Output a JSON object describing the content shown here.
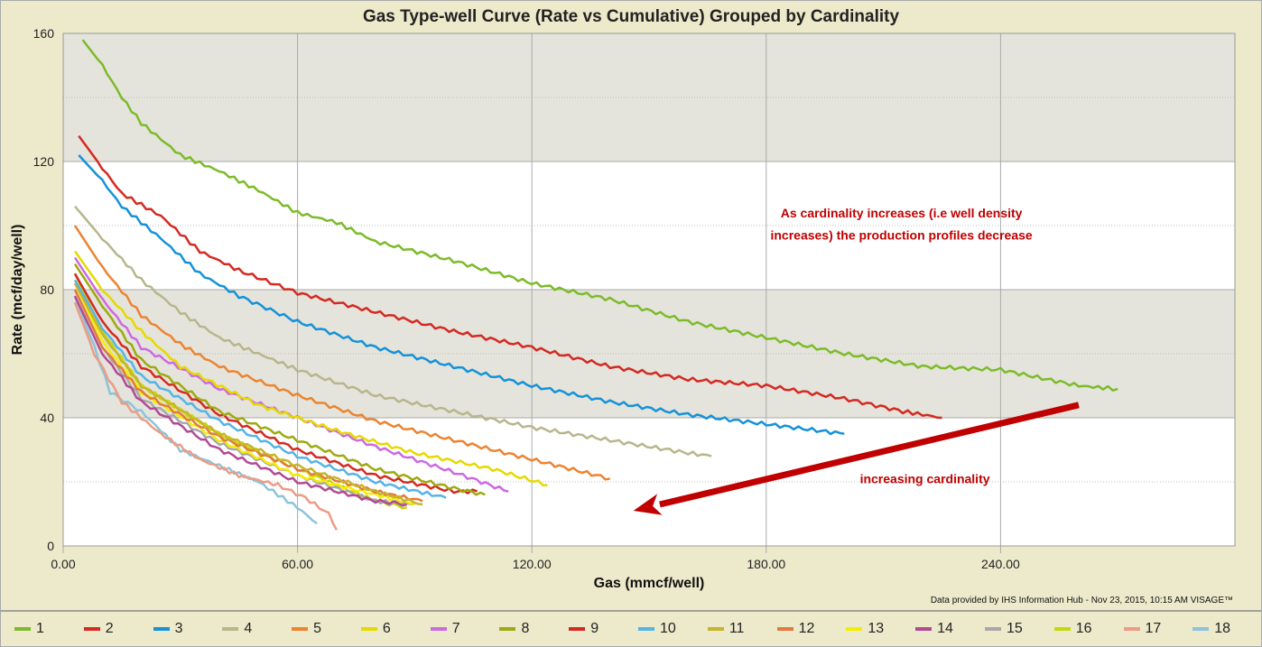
{
  "chart_data": {
    "type": "line",
    "title": "Gas Type-well Curve (Rate vs Cumulative) Grouped by Cardinality",
    "xlabel": "Gas (mmcf/well)",
    "ylabel": "Rate (mcf/day/well)",
    "xlim": [
      0,
      300
    ],
    "ylim": [
      0,
      160
    ],
    "xticks": [
      0,
      60,
      120,
      180,
      240
    ],
    "xtick_labels": [
      "0.00",
      "60.00",
      "120.00",
      "180.00",
      "240.00"
    ],
    "yticks": [
      0,
      40,
      80,
      120,
      160
    ],
    "ytick_labels": [
      "0",
      "40",
      "80",
      "120",
      "160"
    ],
    "grid": true,
    "bands": [
      [
        40,
        80
      ],
      [
        120,
        160
      ]
    ],
    "legend_position": "bottom",
    "annotations": [
      {
        "text": "As cardinality increases (i.e well density",
        "x": 210,
        "y": 104
      },
      {
        "text": "increases) the production profiles decrease",
        "x": 210,
        "y": 97
      },
      {
        "text": "increasing cardinality",
        "x": 216,
        "y": 21
      }
    ],
    "arrow": {
      "from": [
        260,
        44
      ],
      "to": [
        146,
        11
      ],
      "color": "#C00000"
    },
    "credit": "Data provided by IHS Information Hub - Nov 23, 2015, 10:15 AM  VISAGE™",
    "series": [
      {
        "name": "1",
        "color": "#7DBB2A",
        "points": [
          [
            5,
            158
          ],
          [
            10,
            150
          ],
          [
            15,
            140
          ],
          [
            20,
            132
          ],
          [
            30,
            122
          ],
          [
            40,
            117
          ],
          [
            50,
            111
          ],
          [
            60,
            104
          ],
          [
            70,
            101
          ],
          [
            80,
            95
          ],
          [
            100,
            89
          ],
          [
            120,
            82
          ],
          [
            140,
            77
          ],
          [
            160,
            70
          ],
          [
            180,
            65
          ],
          [
            200,
            60
          ],
          [
            220,
            56
          ],
          [
            240,
            55
          ],
          [
            260,
            50
          ],
          [
            270,
            49
          ]
        ]
      },
      {
        "name": "2",
        "color": "#D42A22",
        "points": [
          [
            4,
            128
          ],
          [
            10,
            118
          ],
          [
            15,
            110
          ],
          [
            25,
            103
          ],
          [
            35,
            92
          ],
          [
            45,
            86
          ],
          [
            60,
            79
          ],
          [
            80,
            73
          ],
          [
            100,
            67
          ],
          [
            120,
            62
          ],
          [
            140,
            56
          ],
          [
            160,
            52
          ],
          [
            180,
            50
          ],
          [
            200,
            46
          ],
          [
            215,
            42
          ],
          [
            225,
            40
          ]
        ]
      },
      {
        "name": "3",
        "color": "#1592D8",
        "points": [
          [
            4,
            122
          ],
          [
            10,
            114
          ],
          [
            15,
            106
          ],
          [
            25,
            96
          ],
          [
            35,
            85
          ],
          [
            45,
            78
          ],
          [
            60,
            70
          ],
          [
            80,
            62
          ],
          [
            100,
            56
          ],
          [
            120,
            50
          ],
          [
            140,
            45
          ],
          [
            160,
            41
          ],
          [
            180,
            38
          ],
          [
            200,
            35
          ]
        ]
      },
      {
        "name": "4",
        "color": "#B7B68C",
        "points": [
          [
            3,
            106
          ],
          [
            10,
            96
          ],
          [
            20,
            83
          ],
          [
            30,
            73
          ],
          [
            40,
            65
          ],
          [
            50,
            60
          ],
          [
            60,
            55
          ],
          [
            80,
            47
          ],
          [
            100,
            42
          ],
          [
            120,
            37
          ],
          [
            140,
            33
          ],
          [
            160,
            29
          ],
          [
            166,
            28
          ]
        ]
      },
      {
        "name": "5",
        "color": "#EC8431",
        "points": [
          [
            3,
            100
          ],
          [
            10,
            87
          ],
          [
            20,
            72
          ],
          [
            30,
            63
          ],
          [
            40,
            56
          ],
          [
            60,
            47
          ],
          [
            80,
            39
          ],
          [
            100,
            33
          ],
          [
            120,
            27
          ],
          [
            140,
            21
          ]
        ]
      },
      {
        "name": "6",
        "color": "#E6D900",
        "points": [
          [
            3,
            92
          ],
          [
            10,
            80
          ],
          [
            20,
            67
          ],
          [
            30,
            56
          ],
          [
            50,
            44
          ],
          [
            70,
            36
          ],
          [
            90,
            29
          ],
          [
            110,
            24
          ],
          [
            124,
            19
          ]
        ]
      },
      {
        "name": "7",
        "color": "#CC6AE0",
        "points": [
          [
            3,
            90
          ],
          [
            10,
            77
          ],
          [
            20,
            62
          ],
          [
            40,
            49
          ],
          [
            60,
            40
          ],
          [
            80,
            31
          ],
          [
            100,
            23
          ],
          [
            114,
            17
          ]
        ]
      },
      {
        "name": "8",
        "color": "#9EAA10",
        "points": [
          [
            3,
            88
          ],
          [
            10,
            75
          ],
          [
            20,
            58
          ],
          [
            40,
            42
          ],
          [
            60,
            33
          ],
          [
            80,
            24
          ],
          [
            100,
            18
          ],
          [
            108,
            16
          ]
        ]
      },
      {
        "name": "9",
        "color": "#D42A22",
        "points": [
          [
            3,
            85
          ],
          [
            10,
            70
          ],
          [
            20,
            56
          ],
          [
            40,
            41
          ],
          [
            60,
            30
          ],
          [
            80,
            22
          ],
          [
            100,
            17
          ],
          [
            106,
            17
          ]
        ]
      },
      {
        "name": "10",
        "color": "#55B4E6",
        "points": [
          [
            3,
            83
          ],
          [
            10,
            68
          ],
          [
            20,
            53
          ],
          [
            40,
            39
          ],
          [
            60,
            28
          ],
          [
            80,
            20
          ],
          [
            98,
            15
          ]
        ]
      },
      {
        "name": "11",
        "color": "#C8B42A",
        "points": [
          [
            3,
            82
          ],
          [
            10,
            66
          ],
          [
            20,
            50
          ],
          [
            40,
            35
          ],
          [
            60,
            25
          ],
          [
            80,
            17
          ],
          [
            92,
            13
          ]
        ]
      },
      {
        "name": "12",
        "color": "#E27A3C",
        "points": [
          [
            3,
            80
          ],
          [
            10,
            62
          ],
          [
            20,
            48
          ],
          [
            40,
            34
          ],
          [
            60,
            24
          ],
          [
            80,
            17
          ],
          [
            92,
            14
          ]
        ]
      },
      {
        "name": "13",
        "color": "#F5EE00",
        "points": [
          [
            3,
            82
          ],
          [
            10,
            64
          ],
          [
            20,
            48
          ],
          [
            40,
            33
          ],
          [
            60,
            22
          ],
          [
            80,
            16
          ],
          [
            90,
            13
          ]
        ]
      },
      {
        "name": "14",
        "color": "#B24A94",
        "points": [
          [
            3,
            78
          ],
          [
            10,
            60
          ],
          [
            20,
            45
          ],
          [
            40,
            30
          ],
          [
            60,
            20
          ],
          [
            80,
            14
          ],
          [
            88,
            13
          ]
        ]
      },
      {
        "name": "15",
        "color": "#A8A8A8",
        "points": [
          [
            3,
            80
          ],
          [
            10,
            62
          ],
          [
            20,
            46
          ],
          [
            40,
            32
          ],
          [
            60,
            22
          ],
          [
            80,
            14
          ],
          [
            90,
            13
          ]
        ]
      },
      {
        "name": "16",
        "color": "#C4D80E",
        "points": [
          [
            3,
            85
          ],
          [
            10,
            67
          ],
          [
            20,
            50
          ],
          [
            40,
            35
          ],
          [
            60,
            24
          ],
          [
            80,
            14
          ],
          [
            88,
            12
          ]
        ]
      },
      {
        "name": "17",
        "color": "#EC9C84",
        "points": [
          [
            3,
            76
          ],
          [
            8,
            60
          ],
          [
            15,
            45
          ],
          [
            25,
            35
          ],
          [
            35,
            27
          ],
          [
            45,
            22
          ],
          [
            55,
            19
          ],
          [
            62,
            15
          ],
          [
            68,
            10
          ],
          [
            70,
            5
          ]
        ]
      },
      {
        "name": "18",
        "color": "#8CC4DA",
        "points": [
          [
            3,
            78
          ],
          [
            8,
            62
          ],
          [
            12,
            48
          ],
          [
            20,
            42
          ],
          [
            30,
            30
          ],
          [
            40,
            25
          ],
          [
            50,
            20
          ],
          [
            60,
            12
          ],
          [
            65,
            7
          ]
        ]
      }
    ]
  }
}
